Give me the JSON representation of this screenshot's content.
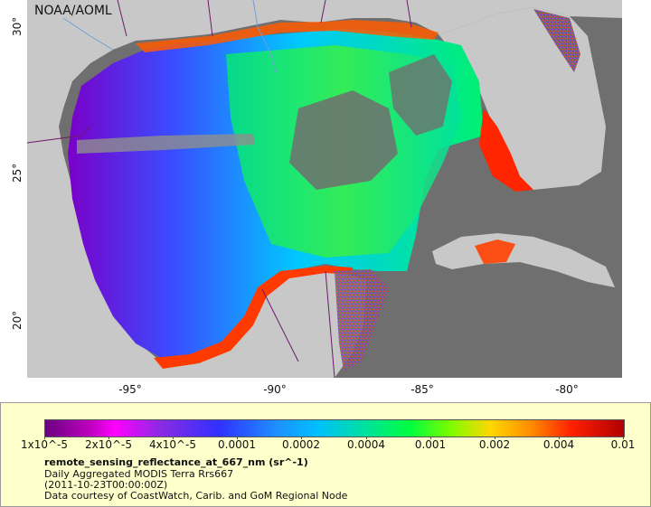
{
  "map": {
    "credit": "NOAA/AOML",
    "lat_ticks": [
      "30°",
      "25°",
      "20°"
    ],
    "lon_ticks": [
      "-95°",
      "-90°",
      "-85°",
      "-80°"
    ],
    "land_color": "#c8c8c8",
    "nodata_color": "#6f6f6f"
  },
  "legend": {
    "scale": [
      "1x10^-5",
      "2x10^-5",
      "4x10^-5",
      "0.0001",
      "0.0002",
      "0.0004",
      "0.001",
      "0.002",
      "0.004",
      "0.01"
    ],
    "variable": "remote_sensing_reflectance_at_667_nm (sr^-1)",
    "product": "Daily Aggregated MODIS Terra Rrs667",
    "time": "(2011-10-23T00:00:00Z)",
    "source": "Data courtesy of CoastWatch, Carib. and GoM Regional Node"
  }
}
